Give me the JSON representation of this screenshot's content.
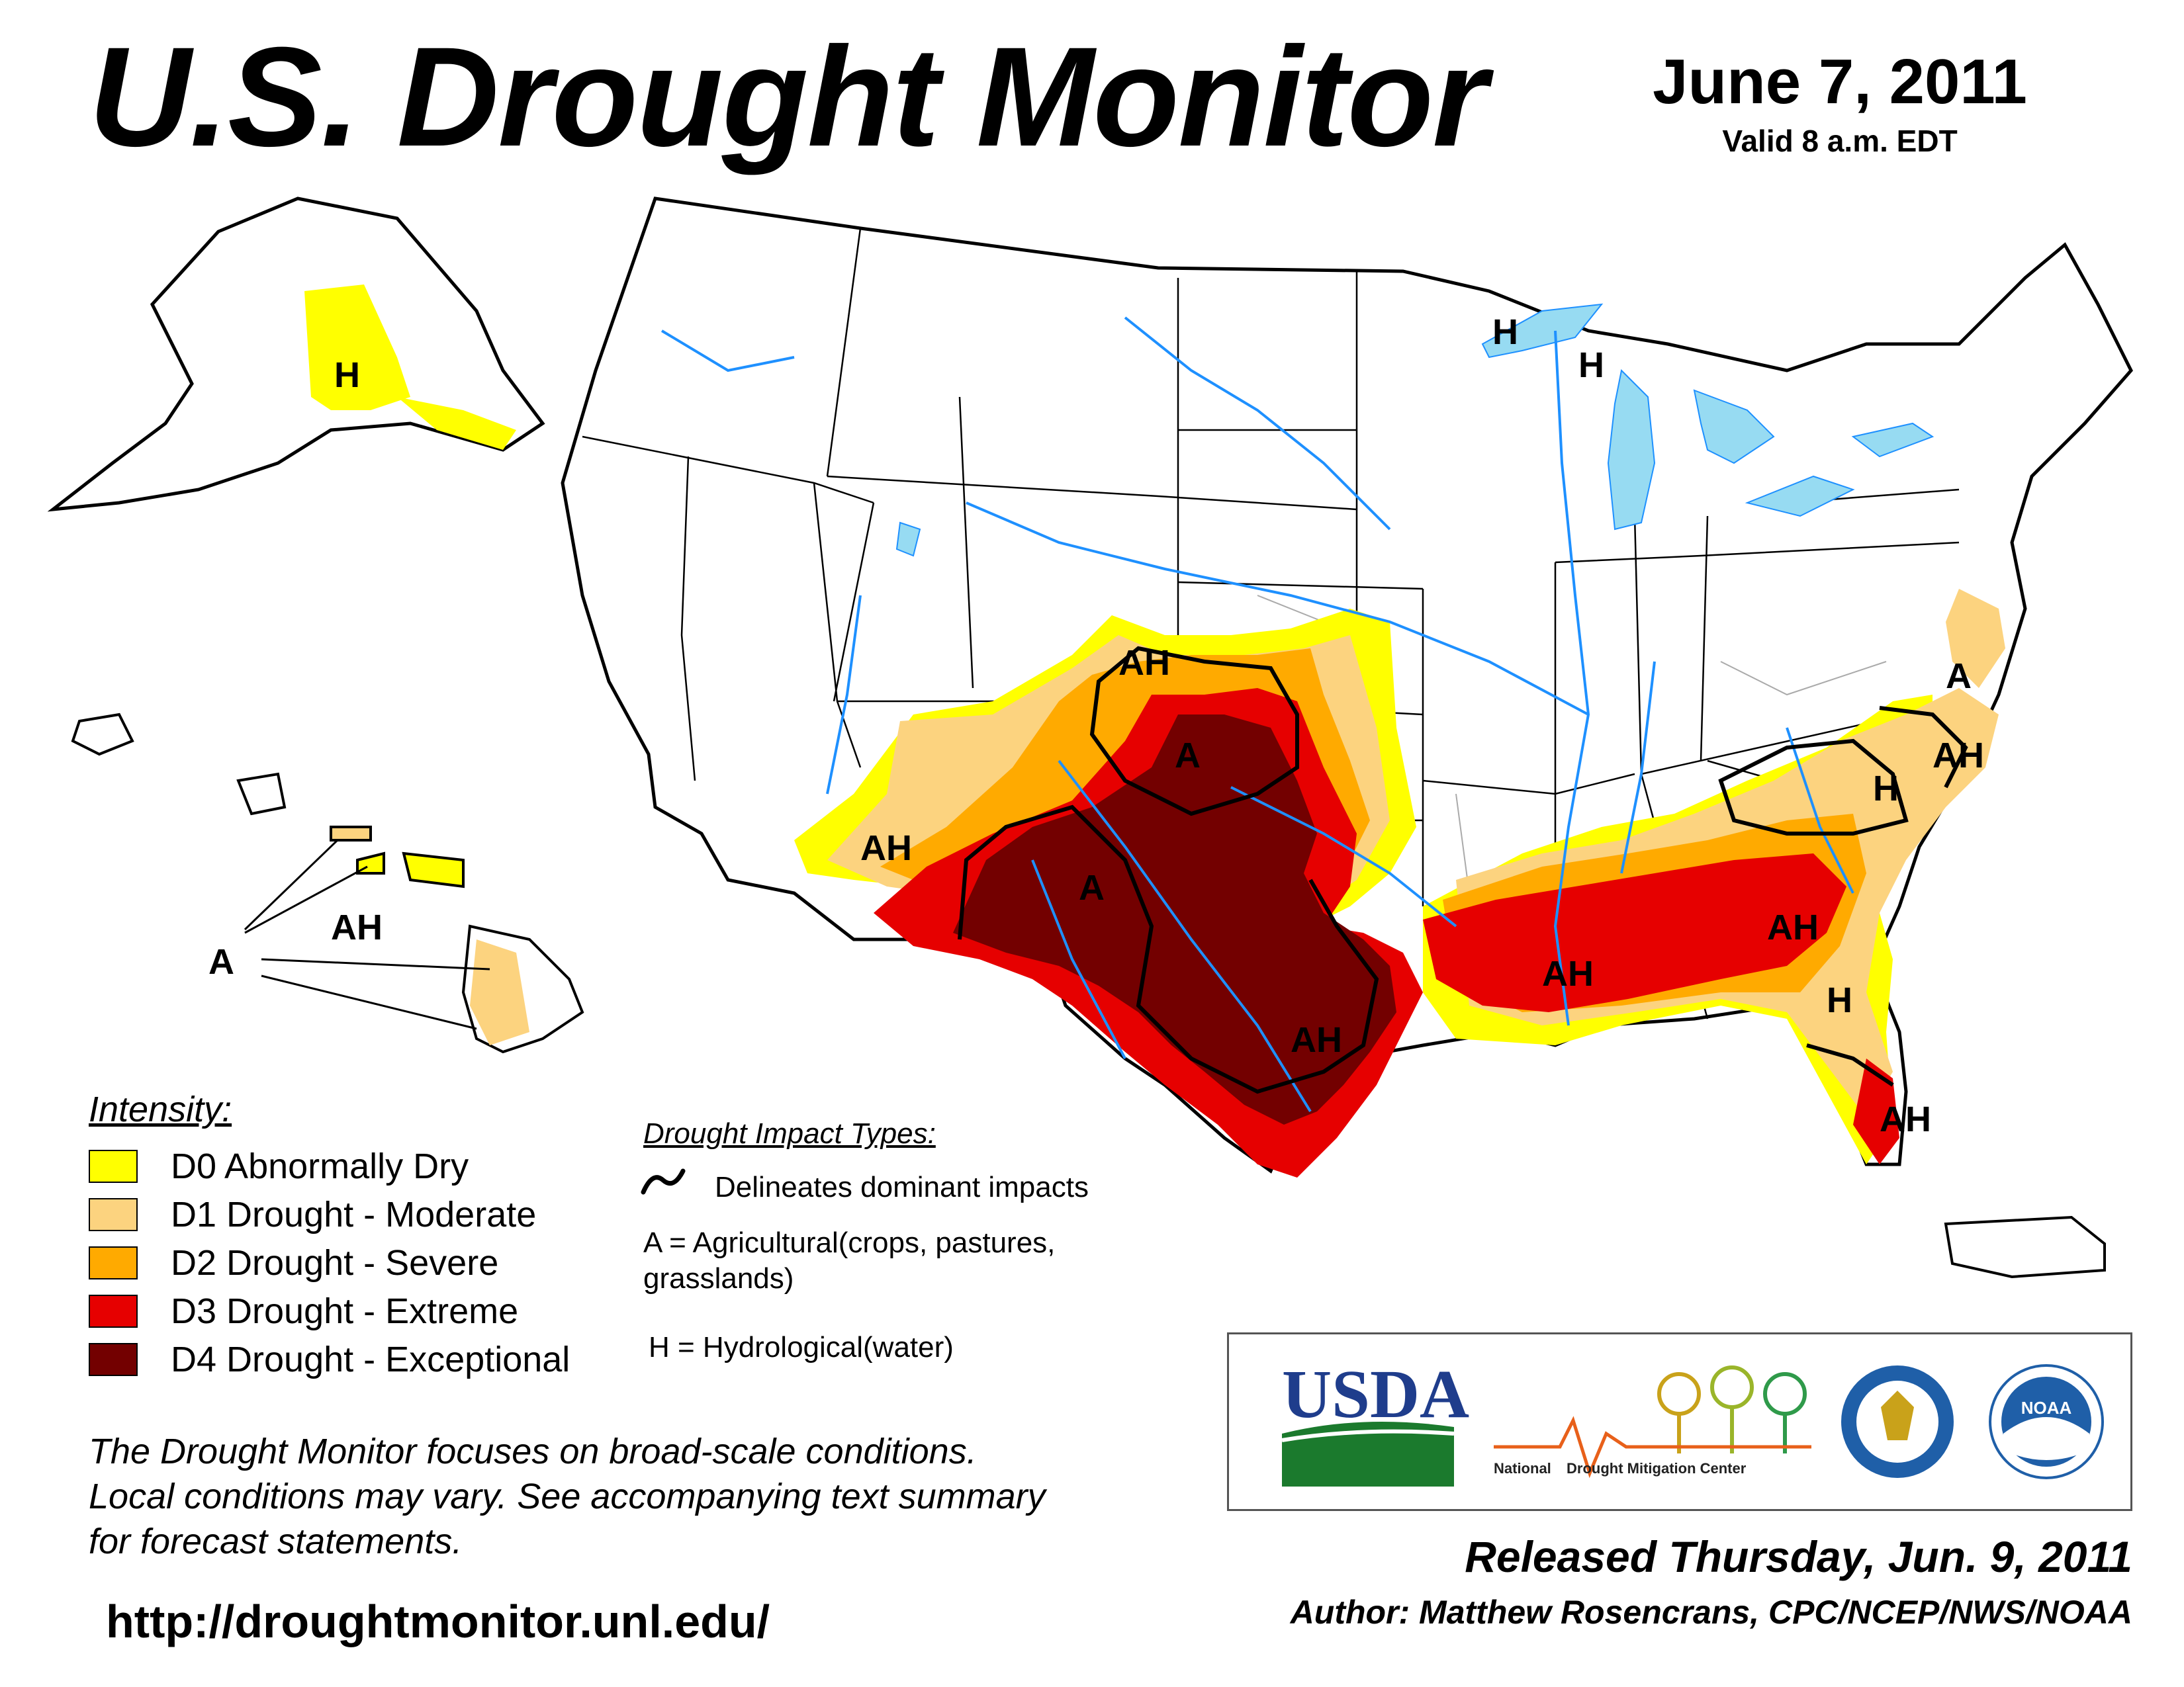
{
  "header": {
    "title": "U.S. Drought Monitor",
    "date": "June 7, 2011",
    "valid": "Valid 8 a.m. EDT"
  },
  "colors": {
    "D0": "#ffff00",
    "D1": "#fcd37f",
    "D2": "#ffaa00",
    "D3": "#e60000",
    "D4": "#730000",
    "water": "#97dbf2",
    "river": "#1e90ff",
    "border": "#999999"
  },
  "map_labels": {
    "alaska_h": "H",
    "hawaii_a": "A",
    "hawaii_ah": "AH",
    "southwest_ah": "AH",
    "nm_a": "A",
    "colorado_ah": "AH",
    "kansas_a": "A",
    "texas_ah": "AH",
    "gulf_ah": "AH",
    "georgia_ah": "AH",
    "florida_h": "H",
    "florida_ah": "AH",
    "carolina_h": "H",
    "nc_ah": "AH",
    "mid_atlantic_a": "A",
    "minnesota_h": "H",
    "michigan_h": "H"
  },
  "legend": {
    "title": "Intensity:",
    "items": [
      {
        "label": "D0 Abnormally Dry",
        "color": "#ffff00"
      },
      {
        "label": "D1 Drought - Moderate",
        "color": "#fcd37f"
      },
      {
        "label": "D2 Drought - Severe",
        "color": "#ffaa00"
      },
      {
        "label": "D3 Drought - Extreme",
        "color": "#e60000"
      },
      {
        "label": "D4 Drought - Exceptional",
        "color": "#730000"
      }
    ]
  },
  "impacts": {
    "title": "Drought Impact Types:",
    "delineates": "Delineates dominant impacts",
    "agricultural_1": "A = Agricultural(crops, pastures,",
    "agricultural_2": "grasslands)",
    "hydrological": "H = Hydrological(water)"
  },
  "note": {
    "line1": "The Drought Monitor focuses on broad-scale conditions.",
    "line2": "Local conditions may vary. See accompanying text summary",
    "line3": "for forecast statements."
  },
  "url": "http://droughtmonitor.unl.edu/",
  "logos": {
    "usda": "USDA",
    "ndmc_1": "National",
    "ndmc_2": "Drought Mitigation Center",
    "noaa": "NOAA"
  },
  "released": "Released Thursday, Jun. 9, 2011",
  "author": "Author: Matthew Rosencrans, CPC/NCEP/NWS/NOAA"
}
